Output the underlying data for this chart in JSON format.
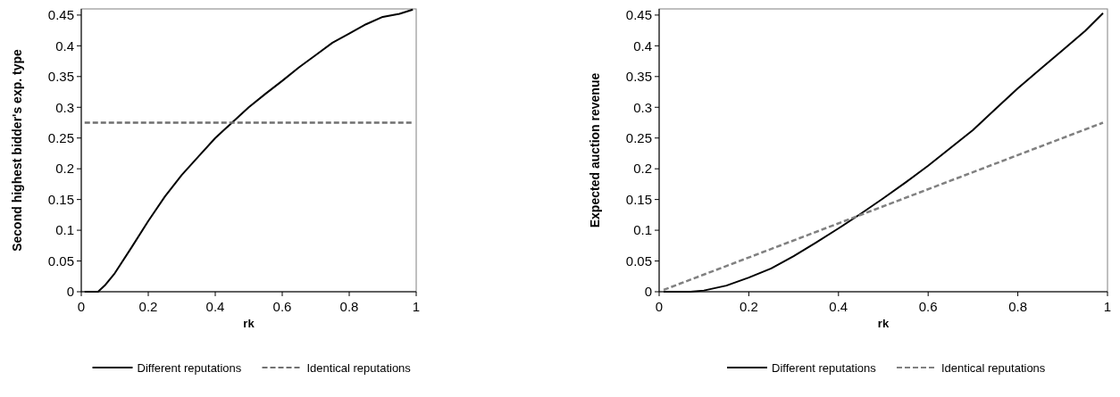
{
  "chart_data": [
    {
      "type": "line",
      "xlabel": "rk",
      "ylabel": "Second highest bidder's exp. type",
      "xlim": [
        0,
        1
      ],
      "xticks": [
        0,
        0.2,
        0.4,
        0.6,
        0.8,
        1
      ],
      "ylim": [
        0,
        0.46
      ],
      "yticks": [
        0,
        0.05,
        0.1,
        0.15,
        0.2,
        0.25,
        0.3,
        0.35,
        0.4,
        0.45
      ],
      "grid": false,
      "legend": "bottom",
      "series": [
        {
          "name": "Different reputations",
          "color": "#000000",
          "line_style": "solid",
          "x": [
            0.01,
            0.05,
            0.07,
            0.1,
            0.15,
            0.2,
            0.25,
            0.3,
            0.35,
            0.4,
            0.45,
            0.5,
            0.55,
            0.6,
            0.65,
            0.7,
            0.75,
            0.8,
            0.85,
            0.9,
            0.95,
            0.99
          ],
          "values": [
            0,
            0,
            0.01,
            0.03,
            0.072,
            0.115,
            0.155,
            0.19,
            0.22,
            0.25,
            0.275,
            0.3,
            0.322,
            0.343,
            0.365,
            0.385,
            0.405,
            0.42,
            0.435,
            0.447,
            0.452,
            0.459
          ]
        },
        {
          "name": "Identical reputations",
          "color": "#707070",
          "line_style": "dashed",
          "x": [
            0.01,
            0.99
          ],
          "values": [
            0.275,
            0.275
          ]
        }
      ]
    },
    {
      "type": "line",
      "xlabel": "rk",
      "ylabel": "Expected auction revenue",
      "xlim": [
        0,
        1
      ],
      "xticks": [
        0,
        0.2,
        0.4,
        0.6,
        0.8,
        1
      ],
      "ylim": [
        0,
        0.46
      ],
      "yticks": [
        0,
        0.05,
        0.1,
        0.15,
        0.2,
        0.25,
        0.3,
        0.35,
        0.4,
        0.45
      ],
      "grid": false,
      "legend": "bottom",
      "series": [
        {
          "name": "Different reputations",
          "color": "#000000",
          "line_style": "solid",
          "x": [
            0.01,
            0.07,
            0.1,
            0.15,
            0.2,
            0.25,
            0.3,
            0.35,
            0.4,
            0.45,
            0.5,
            0.55,
            0.6,
            0.65,
            0.7,
            0.75,
            0.8,
            0.85,
            0.9,
            0.95,
            0.99
          ],
          "values": [
            0,
            0,
            0.002,
            0.01,
            0.023,
            0.038,
            0.058,
            0.08,
            0.103,
            0.127,
            0.152,
            0.178,
            0.205,
            0.234,
            0.263,
            0.297,
            0.331,
            0.362,
            0.393,
            0.424,
            0.453
          ]
        },
        {
          "name": "Identical reputations",
          "color": "#808080",
          "line_style": "dashed",
          "x": [
            0.01,
            0.99
          ],
          "values": [
            0.003,
            0.275
          ]
        }
      ]
    }
  ]
}
